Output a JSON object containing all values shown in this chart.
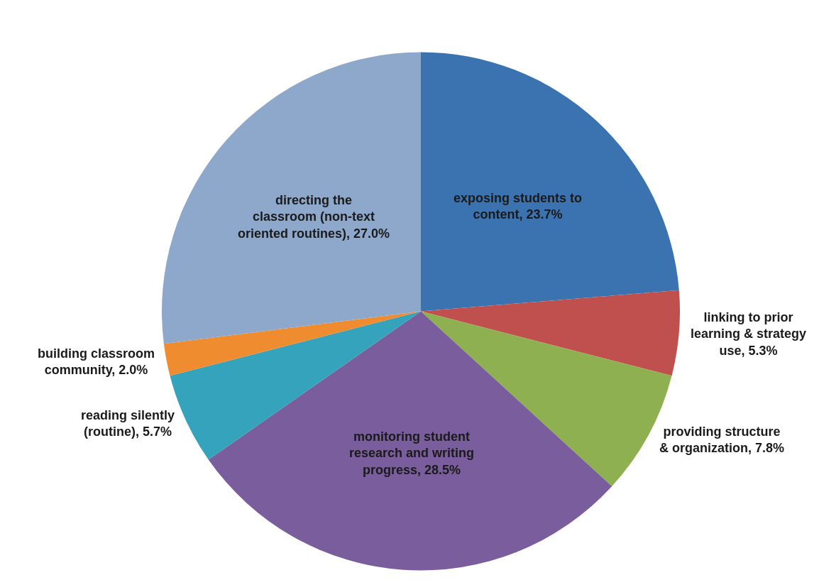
{
  "chart_data": {
    "type": "pie",
    "categories": [
      "exposing students to content",
      "linking to prior learning & strategy use",
      "providing structure & organization",
      "monitoring student research and writing progress",
      "reading silently (routine)",
      "building classroom community",
      "directing the classroom (non-text oriented routines)"
    ],
    "values": [
      23.7,
      5.3,
      7.8,
      28.5,
      5.7,
      2.0,
      27.0
    ],
    "value_labels": [
      "23.7%",
      "5.3%",
      "7.8%",
      "28.5%",
      "5.7%",
      "2.0%",
      "27.0%"
    ],
    "colors": [
      "#3a73b0",
      "#c0504d",
      "#8fb050",
      "#7a5d9c",
      "#36a3bd",
      "#f08c30",
      "#8ea8cc"
    ],
    "legend": false
  }
}
